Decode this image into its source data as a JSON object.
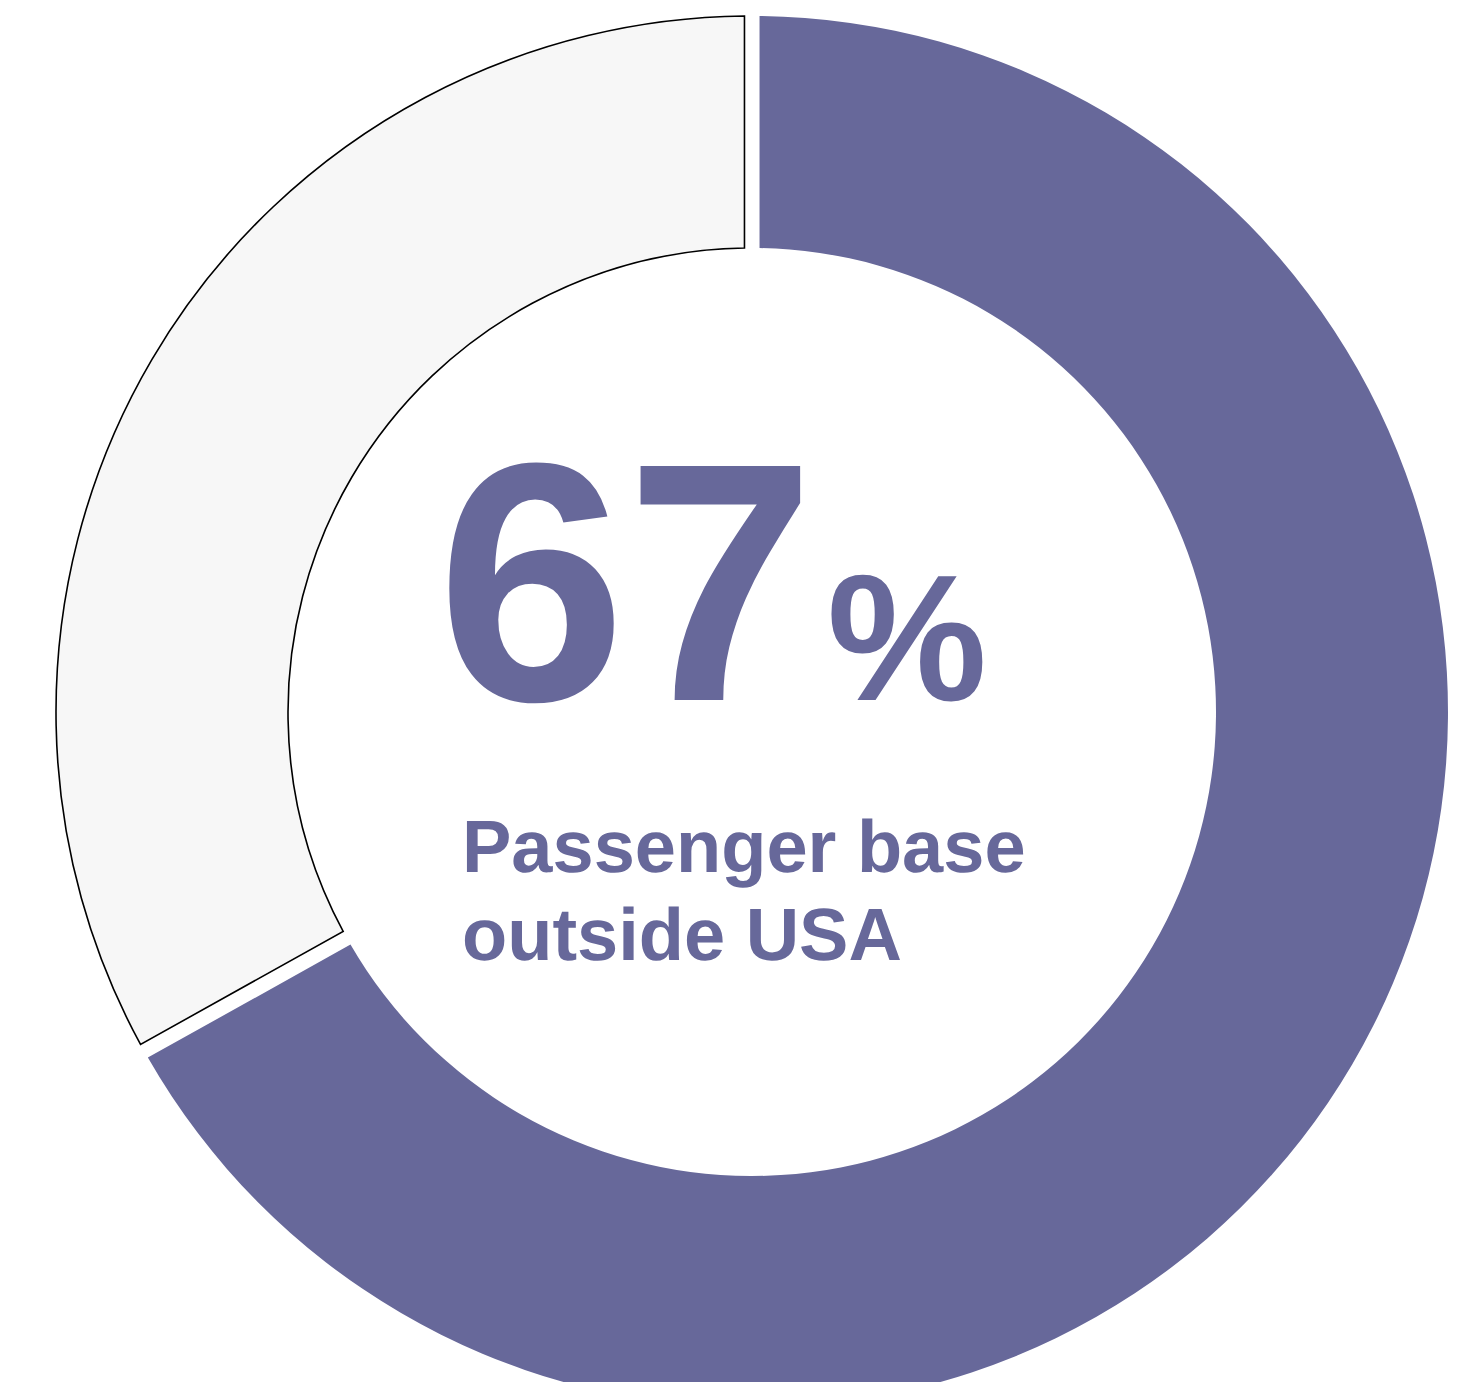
{
  "chart_data": {
    "type": "donut",
    "categories": [
      "Passenger base outside USA",
      null
    ],
    "values": [
      67,
      33
    ],
    "colors": [
      "#67689a",
      "#f7f7f7"
    ],
    "value_labels": [
      "67%",
      null
    ]
  }
}
